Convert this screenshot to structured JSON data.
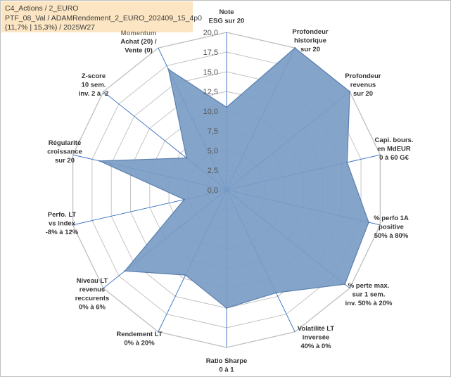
{
  "info": {
    "line1": "C4_Actions / 2_EURO",
    "line2": "PTF_08_Val / ADAMRendement_2_EURO_202409_15_4p0",
    "line3": "(11,7% | 15,3%) / 2025W27"
  },
  "chart_data": {
    "type": "radar",
    "rlim": [
      0,
      20
    ],
    "ticks": [
      "0,0",
      "2,5",
      "5,0",
      "7,5",
      "10,0",
      "12,5",
      "15,0",
      "17,5",
      "20,0"
    ],
    "tick_values": [
      0,
      2.5,
      5,
      7.5,
      10,
      12.5,
      15,
      17.5,
      20
    ],
    "grid": true,
    "annotation": "Momentum",
    "categories": [
      [
        "Note",
        "ESG sur 20"
      ],
      [
        "Profondeur",
        "historique",
        "sur 20"
      ],
      [
        "Profondeur",
        "revenus",
        "sur 20"
      ],
      [
        "Capi. bours.",
        "en MdEUR",
        "0 à 60 G€"
      ],
      [
        "% perfo 1A",
        "positive",
        "50% à 80%"
      ],
      [
        "% perte max.",
        "sur 1 sem.",
        "inv. 50% à 20%"
      ],
      [
        "Volatilité LT",
        "inversée",
        "40% à 0%"
      ],
      [
        "Ratio Sharpe",
        "0 à 1"
      ],
      [
        "Rendement LT",
        "0% à 20%"
      ],
      [
        "Niveau LT",
        "revenus",
        "reccurents",
        "0% à 6%"
      ],
      [
        "Perfo. LT",
        "vs index",
        "-8% à 12%"
      ],
      [
        "Régularité",
        "croissance",
        "sur 20"
      ],
      [
        "Z-score",
        "10 sem.",
        "inv. 2 à -2"
      ],
      [
        "Achat (20) /",
        "Vente (0)"
      ]
    ],
    "values": [
      10.5,
      20,
      20,
      15.7,
      18.5,
      19.2,
      14.5,
      15.0,
      12.0,
      16.5,
      5.5,
      16.5,
      6.5,
      17.0
    ],
    "fill_color": "#7a9cc6",
    "line_color": "#5b7fae",
    "grid_color": "#bfbfbf",
    "spoke_color": "#2e6bc4"
  }
}
